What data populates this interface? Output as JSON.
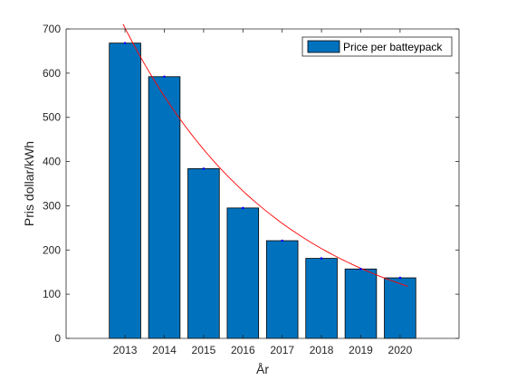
{
  "chart_data": {
    "type": "bar",
    "categories": [
      "2013",
      "2014",
      "2015",
      "2016",
      "2017",
      "2018",
      "2019",
      "2020"
    ],
    "series": [
      {
        "name": "Price per batteypack",
        "values": [
          668,
          592,
          384,
          295,
          221,
          181,
          157,
          137
        ],
        "color": "#0072BD"
      }
    ],
    "trendline": {
      "color": "#FF0000",
      "x_range": [
        2012.95,
        2020.2
      ],
      "a": 702,
      "b": 0.248
    },
    "markers": {
      "color": "#0000FF"
    },
    "xlabel": "År",
    "ylabel": "Pris dollar/kWh",
    "xlim": [
      2011.5,
      2021.5
    ],
    "ylim": [
      0,
      700
    ],
    "yticks": [
      0,
      100,
      200,
      300,
      400,
      500,
      600,
      700
    ],
    "grid": false,
    "legend_position": "top-right"
  }
}
